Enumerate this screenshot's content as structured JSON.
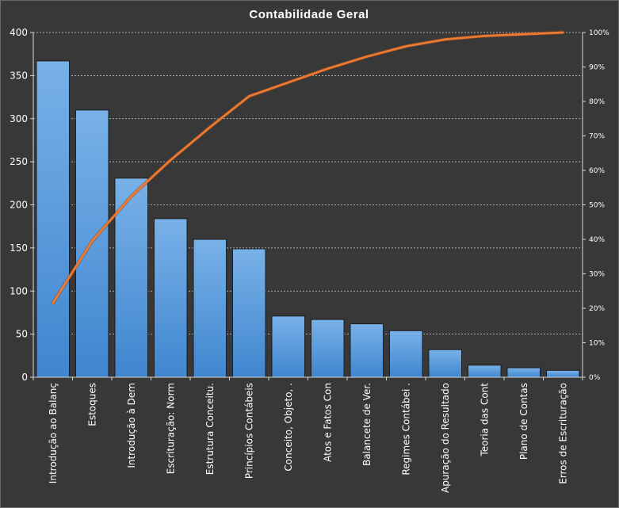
{
  "chart_data": {
    "type": "bar",
    "title": "Contabilidade  Geral",
    "categories": [
      "Introdução  ao Balanç",
      "Estoques",
      "Introdução à Dem",
      "Escrituração: Norm",
      "Estrutura Conceitu.",
      "Princípios Contábeis",
      "Conceito, Objeto, .",
      "Atos e Fatos Con",
      "Balancete de Ver.",
      "Regimes Contábei .",
      "Apuração do Resultado",
      "Teoria das Cont",
      "Plano de Contas",
      "Erros de Escrituração"
    ],
    "series": [
      {
        "type": "bar",
        "values": [
          367,
          310,
          231,
          184,
          160,
          149,
          71,
          67,
          62,
          54,
          32,
          14,
          11,
          8
        ]
      },
      {
        "type": "line",
        "axis": "right",
        "values": [
          21.5,
          39.5,
          52.5,
          63.0,
          72.5,
          81.5,
          85.5,
          89.5,
          93.0,
          96.0,
          98.0,
          99.0,
          99.5,
          100.0
        ]
      }
    ],
    "ylim": [
      0,
      400
    ],
    "yticks": [
      "0",
      "50",
      "100",
      "150",
      "200",
      "250",
      "300",
      "350",
      "400"
    ],
    "y2lim": [
      0,
      100
    ],
    "y2ticks": [
      "0%",
      "10%",
      "20%",
      "30%",
      "40%",
      "50%",
      "60%",
      "70%",
      "80%",
      "90%",
      "100%"
    ],
    "grid": true,
    "colors": {
      "background": "#393838",
      "bar_top": "#79b1e8",
      "bar_bottom": "#3f86cf",
      "line": "#ec7a33"
    }
  }
}
